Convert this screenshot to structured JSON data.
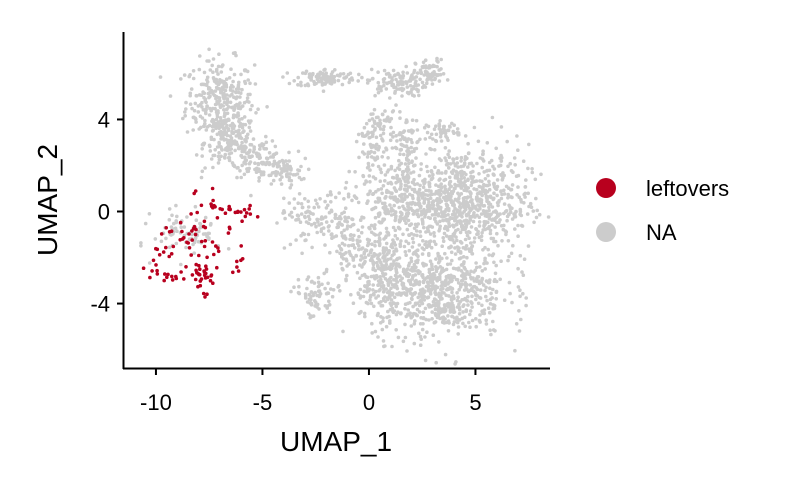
{
  "chart_data": {
    "type": "scatter",
    "xlabel": "UMAP_1",
    "ylabel": "UMAP_2",
    "xlim": [
      -11.5,
      8.5
    ],
    "ylim": [
      -6.8,
      7.8
    ],
    "xticks": [
      -10,
      -5,
      0,
      5
    ],
    "xtick_labels": [
      "-10",
      "-5",
      "0",
      "5"
    ],
    "yticks": [
      -4,
      0,
      4
    ],
    "ytick_labels": [
      "-4",
      "0",
      "4"
    ],
    "grid": false,
    "legend_position": "right",
    "series": [
      {
        "name": "leftovers",
        "color": "#B8001E",
        "clusters": [
          {
            "cx": -8.3,
            "cy": -1.3,
            "sx": 0.9,
            "sy": 0.8,
            "n": 55
          },
          {
            "cx": -7.8,
            "cy": -2.7,
            "sx": 0.35,
            "sy": 0.25,
            "n": 25
          },
          {
            "cx": -6.6,
            "cy": 0.0,
            "sx": 0.6,
            "sy": 0.2,
            "n": 22
          },
          {
            "cx": -9.2,
            "cy": -2.9,
            "sx": 0.3,
            "sy": 0.15,
            "n": 10
          },
          {
            "cx": -10.3,
            "cy": -2.7,
            "sx": 0.2,
            "sy": 0.2,
            "n": 6
          },
          {
            "cx": -6.1,
            "cy": -2.2,
            "sx": 0.15,
            "sy": 0.25,
            "n": 6
          },
          {
            "cx": -7.4,
            "cy": 0.6,
            "sx": 0.1,
            "sy": 0.2,
            "n": 4
          },
          {
            "cx": -7.7,
            "cy": -3.7,
            "sx": 0.08,
            "sy": 0.1,
            "n": 3
          }
        ]
      },
      {
        "name": "NA",
        "color": "#CCCCCC",
        "clusters": [
          {
            "cx": -7.0,
            "cy": 4.8,
            "sx": 0.8,
            "sy": 0.9,
            "n": 300
          },
          {
            "cx": -6.5,
            "cy": 3.0,
            "sx": 0.6,
            "sy": 0.6,
            "n": 150
          },
          {
            "cx": -5.2,
            "cy": 2.3,
            "sx": 0.6,
            "sy": 0.4,
            "n": 100
          },
          {
            "cx": -4.0,
            "cy": 1.7,
            "sx": 0.5,
            "sy": 0.3,
            "n": 60
          },
          {
            "cx": -2.0,
            "cy": 5.8,
            "sx": 0.7,
            "sy": 0.2,
            "n": 110
          },
          {
            "cx": 1.3,
            "cy": 5.6,
            "sx": 0.7,
            "sy": 0.3,
            "n": 110
          },
          {
            "cx": 2.9,
            "cy": 6.0,
            "sx": 0.35,
            "sy": 0.3,
            "n": 60
          },
          {
            "cx": 0.6,
            "cy": 3.8,
            "sx": 0.4,
            "sy": 0.4,
            "n": 50
          },
          {
            "cx": 1.7,
            "cy": 2.8,
            "sx": 0.35,
            "sy": 0.7,
            "n": 80
          },
          {
            "cx": 0.2,
            "cy": 2.6,
            "sx": 0.3,
            "sy": 0.5,
            "n": 50
          },
          {
            "cx": 3.5,
            "cy": 3.5,
            "sx": 0.4,
            "sy": 0.2,
            "n": 40
          },
          {
            "cx": 4.5,
            "cy": 0.3,
            "sx": 1.5,
            "sy": 1.3,
            "n": 800
          },
          {
            "cx": 1.5,
            "cy": 0.5,
            "sx": 1.0,
            "sy": 0.8,
            "n": 250
          },
          {
            "cx": 3.0,
            "cy": -3.5,
            "sx": 1.7,
            "sy": 1.0,
            "n": 700
          },
          {
            "cx": 0.5,
            "cy": -2.2,
            "sx": 0.7,
            "sy": 0.9,
            "n": 180
          },
          {
            "cx": -1.8,
            "cy": -0.4,
            "sx": 0.9,
            "sy": 0.6,
            "n": 120
          },
          {
            "cx": -1.0,
            "cy": -1.8,
            "sx": 0.3,
            "sy": 0.5,
            "n": 40
          },
          {
            "cx": -2.5,
            "cy": -3.7,
            "sx": 0.5,
            "sy": 0.5,
            "n": 70
          },
          {
            "cx": -3.3,
            "cy": 0.0,
            "sx": 0.4,
            "sy": 0.3,
            "n": 30
          },
          {
            "cx": -8.5,
            "cy": -0.9,
            "sx": 0.8,
            "sy": 0.5,
            "n": 80
          }
        ]
      }
    ]
  }
}
